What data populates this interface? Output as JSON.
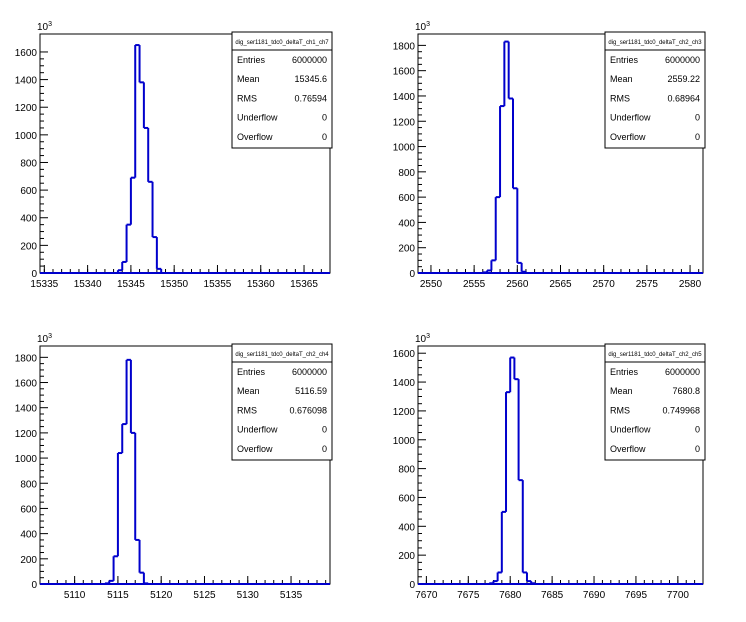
{
  "chart_data": [
    {
      "type": "bar",
      "title": "dig_ser1181_tdc0_deltaT_ch1_ch7",
      "exponent_label": "10",
      "exponent_power": "3",
      "x_ticks": [
        "15335",
        "15340",
        "15345",
        "15350",
        "15355",
        "15360",
        "15365"
      ],
      "y_ticks": [
        "0",
        "200",
        "400",
        "600",
        "800",
        "1000",
        "1200",
        "1400",
        "1600"
      ],
      "xlim": [
        15334.5,
        15368.0
      ],
      "ylim": [
        0,
        1730
      ],
      "bins": [
        {
          "x0": 15343.5,
          "x1": 15344.0,
          "value": 20
        },
        {
          "x0": 15344.0,
          "x1": 15344.5,
          "value": 80
        },
        {
          "x0": 15344.5,
          "x1": 15345.0,
          "value": 350
        },
        {
          "x0": 15345.0,
          "x1": 15345.5,
          "value": 690
        },
        {
          "x0": 15345.5,
          "x1": 15346.0,
          "value": 1650
        },
        {
          "x0": 15346.0,
          "x1": 15346.5,
          "value": 1380
        },
        {
          "x0": 15346.5,
          "x1": 15347.0,
          "value": 1050
        },
        {
          "x0": 15347.0,
          "x1": 15347.5,
          "value": 660
        },
        {
          "x0": 15347.5,
          "x1": 15348.0,
          "value": 260
        },
        {
          "x0": 15348.0,
          "x1": 15348.5,
          "value": 30
        }
      ],
      "stats": [
        {
          "label": "Entries",
          "value": "6000000"
        },
        {
          "label": "Mean",
          "value": "15345.6"
        },
        {
          "label": "RMS",
          "value": "0.76594"
        },
        {
          "label": "Underflow",
          "value": "0"
        },
        {
          "label": "Overflow",
          "value": "0"
        }
      ],
      "line_color": "#0000cc"
    },
    {
      "type": "bar",
      "title": "dig_ser1181_tdc0_deltaT_ch2_ch3",
      "exponent_label": "10",
      "exponent_power": "3",
      "x_ticks": [
        "2550",
        "2555",
        "2560",
        "2565",
        "2570",
        "2575",
        "2580"
      ],
      "y_ticks": [
        "0",
        "200",
        "400",
        "600",
        "800",
        "1000",
        "1200",
        "1400",
        "1600",
        "1800"
      ],
      "xlim": [
        2548.5,
        2581.5
      ],
      "ylim": [
        0,
        1890
      ],
      "bins": [
        {
          "x0": 2556.0,
          "x1": 2556.5,
          "value": 5
        },
        {
          "x0": 2556.5,
          "x1": 2557.0,
          "value": 20
        },
        {
          "x0": 2557.0,
          "x1": 2557.5,
          "value": 100
        },
        {
          "x0": 2557.5,
          "x1": 2558.0,
          "value": 600
        },
        {
          "x0": 2558.0,
          "x1": 2558.5,
          "value": 1320
        },
        {
          "x0": 2558.5,
          "x1": 2559.0,
          "value": 1830
        },
        {
          "x0": 2559.0,
          "x1": 2559.5,
          "value": 1380
        },
        {
          "x0": 2559.5,
          "x1": 2560.0,
          "value": 670
        },
        {
          "x0": 2560.0,
          "x1": 2560.5,
          "value": 80
        },
        {
          "x0": 2560.5,
          "x1": 2561.0,
          "value": 10
        }
      ],
      "stats": [
        {
          "label": "Entries",
          "value": "6000000"
        },
        {
          "label": "Mean",
          "value": "2559.22"
        },
        {
          "label": "RMS",
          "value": "0.68964"
        },
        {
          "label": "Underflow",
          "value": "0"
        },
        {
          "label": "Overflow",
          "value": "0"
        }
      ],
      "line_color": "#0000cc"
    },
    {
      "type": "bar",
      "title": "dig_ser1181_tdc0_deltaT_ch2_ch4",
      "exponent_label": "10",
      "exponent_power": "3",
      "x_ticks": [
        "5110",
        "5115",
        "5120",
        "5125",
        "5130",
        "5135"
      ],
      "y_ticks": [
        "0",
        "200",
        "400",
        "600",
        "800",
        "1000",
        "1200",
        "1400",
        "1600",
        "1800"
      ],
      "xlim": [
        5106.0,
        5139.5
      ],
      "ylim": [
        0,
        1890
      ],
      "bins": [
        {
          "x0": 5113.5,
          "x1": 5114.0,
          "value": 5
        },
        {
          "x0": 5114.0,
          "x1": 5114.5,
          "value": 25
        },
        {
          "x0": 5114.5,
          "x1": 5115.0,
          "value": 220
        },
        {
          "x0": 5115.0,
          "x1": 5115.5,
          "value": 1040
        },
        {
          "x0": 5115.5,
          "x1": 5116.0,
          "value": 1270
        },
        {
          "x0": 5116.0,
          "x1": 5116.5,
          "value": 1780
        },
        {
          "x0": 5116.5,
          "x1": 5117.0,
          "value": 1200
        },
        {
          "x0": 5117.0,
          "x1": 5117.5,
          "value": 350
        },
        {
          "x0": 5117.5,
          "x1": 5118.0,
          "value": 90
        },
        {
          "x0": 5118.0,
          "x1": 5118.5,
          "value": 5
        }
      ],
      "stats": [
        {
          "label": "Entries",
          "value": "6000000"
        },
        {
          "label": "Mean",
          "value": "5116.59"
        },
        {
          "label": "RMS",
          "value": "0.676098"
        },
        {
          "label": "Underflow",
          "value": "0"
        },
        {
          "label": "Overflow",
          "value": "0"
        }
      ],
      "line_color": "#0000cc"
    },
    {
      "type": "bar",
      "title": "dig_ser1181_tdc0_deltaT_ch2_ch5",
      "exponent_label": "10",
      "exponent_power": "3",
      "x_ticks": [
        "7670",
        "7675",
        "7680",
        "7685",
        "7690",
        "7695",
        "7700"
      ],
      "y_ticks": [
        "0",
        "200",
        "400",
        "600",
        "800",
        "1000",
        "1200",
        "1400",
        "1600"
      ],
      "xlim": [
        7669.0,
        7703.0
      ],
      "ylim": [
        0,
        1650
      ],
      "bins": [
        {
          "x0": 7677.5,
          "x1": 7678.0,
          "value": 5
        },
        {
          "x0": 7678.0,
          "x1": 7678.5,
          "value": 20
        },
        {
          "x0": 7678.5,
          "x1": 7679.0,
          "value": 80
        },
        {
          "x0": 7679.0,
          "x1": 7679.5,
          "value": 500
        },
        {
          "x0": 7679.5,
          "x1": 7680.0,
          "value": 1330
        },
        {
          "x0": 7680.0,
          "x1": 7680.5,
          "value": 1570
        },
        {
          "x0": 7680.5,
          "x1": 7681.0,
          "value": 1420
        },
        {
          "x0": 7681.0,
          "x1": 7681.5,
          "value": 720
        },
        {
          "x0": 7681.5,
          "x1": 7682.0,
          "value": 80
        },
        {
          "x0": 7682.0,
          "x1": 7682.5,
          "value": 20
        },
        {
          "x0": 7682.5,
          "x1": 7683.0,
          "value": 5
        }
      ],
      "stats": [
        {
          "label": "Entries",
          "value": "6000000"
        },
        {
          "label": "Mean",
          "value": "7680.8"
        },
        {
          "label": "RMS",
          "value": "0.749968"
        },
        {
          "label": "Underflow",
          "value": "0"
        },
        {
          "label": "Overflow",
          "value": "0"
        }
      ],
      "line_color": "#0000cc"
    }
  ]
}
